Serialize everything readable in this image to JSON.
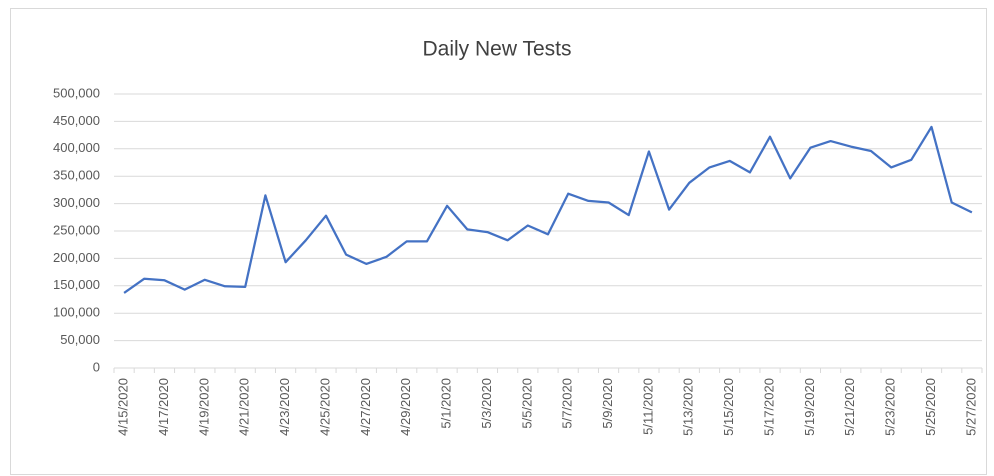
{
  "chart_data": {
    "type": "line",
    "title": "Daily New Tests",
    "categories": [
      "4/15/2020",
      null,
      "4/17/2020",
      null,
      "4/19/2020",
      null,
      "4/21/2020",
      null,
      "4/23/2020",
      null,
      "4/25/2020",
      null,
      "4/27/2020",
      null,
      "4/29/2020",
      null,
      "5/1/2020",
      null,
      "5/3/2020",
      null,
      "5/5/2020",
      null,
      "5/7/2020",
      null,
      "5/9/2020",
      null,
      "5/11/2020",
      null,
      "5/13/2020",
      null,
      "5/15/2020",
      null,
      "5/17/2020",
      null,
      "5/19/2020",
      null,
      "5/21/2020",
      null,
      "5/23/2020",
      null,
      "5/25/2020",
      null,
      "5/27/2020"
    ],
    "values": [
      137000,
      163000,
      160000,
      143000,
      161000,
      149000,
      148000,
      315000,
      193000,
      233000,
      278000,
      207000,
      190000,
      203000,
      231000,
      231000,
      296000,
      253000,
      248000,
      233000,
      260000,
      244000,
      318000,
      305000,
      302000,
      279000,
      395000,
      289000,
      338000,
      366000,
      378000,
      357000,
      422000,
      346000,
      402000,
      414000,
      404000,
      396000,
      366000,
      380000,
      440000,
      302000,
      284000
    ],
    "color": "#4472c4",
    "ylim": [
      0,
      500000
    ],
    "yticks": [
      0,
      {
        "value": 50000,
        "label": "50,000"
      },
      {
        "value": 100000,
        "label": "100,000"
      },
      {
        "value": 150000,
        "label": "150,000"
      },
      {
        "value": 200000,
        "label": "200,000"
      },
      {
        "value": 250000,
        "label": "250,000"
      },
      {
        "value": 300000,
        "label": "300,000"
      },
      {
        "value": 350000,
        "label": "350,000"
      },
      {
        "value": 400000,
        "label": "400,000"
      },
      {
        "value": 450000,
        "label": "450,000"
      },
      {
        "value": 500000,
        "label": "500,000"
      }
    ],
    "grid": true
  }
}
